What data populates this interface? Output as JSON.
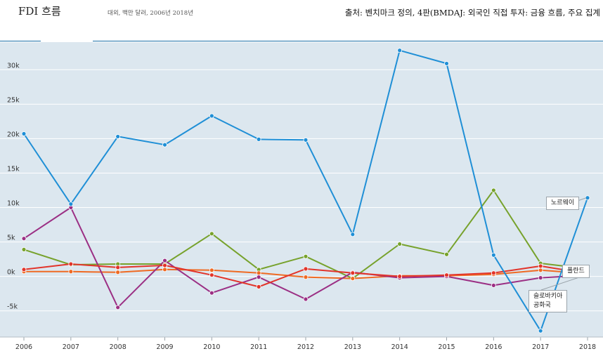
{
  "header": {
    "title": "FDI 흐름",
    "subtitle": "대외, 백만 달러, 2006년 2018년",
    "source": "출처: 벤치마크 정의, 4판(BMDAJ: 외국인 직접 투자: 금융 흐름, 주요 집계"
  },
  "colors": {
    "plot_background": "#dce7ef",
    "norway": "#1f8fd6",
    "hungary": "#77a22c",
    "poland": "#e2342a",
    "czech": "#ef6a23",
    "slovakia": "#9b2f84"
  },
  "chart_data": {
    "type": "line",
    "x": [
      2006,
      2007,
      2008,
      2009,
      2010,
      2011,
      2012,
      2013,
      2014,
      2015,
      2016,
      2017,
      2018
    ],
    "ylim": [
      -8800,
      34000
    ],
    "yticks": [
      -5000,
      0,
      5000,
      10000,
      15000,
      20000,
      25000,
      30000
    ],
    "ytick_labels": [
      "-5k",
      "0k",
      "5k",
      "10k",
      "15k",
      "20k",
      "25k",
      "30k"
    ],
    "grid": true,
    "series": [
      {
        "key": "hungary",
        "values": [
          3900,
          1700,
          1800,
          1800,
          6200,
          1000,
          2900,
          -300,
          4700,
          3200,
          12500,
          1900,
          1100
        ]
      },
      {
        "key": "czech",
        "values": [
          700,
          700,
          600,
          1000,
          900,
          500,
          -100,
          -300,
          100,
          100,
          300,
          900,
          400
        ]
      },
      {
        "key": "slovakia",
        "values": [
          5500,
          10000,
          -4500,
          2300,
          -2400,
          -100,
          -3300,
          600,
          -200,
          0,
          -1300,
          -200,
          200
        ]
      },
      {
        "key": "poland",
        "values": [
          1000,
          1800,
          1300,
          1600,
          200,
          -1500,
          1100,
          500,
          0,
          200,
          500,
          1500,
          400
        ]
      },
      {
        "key": "norway",
        "name": "노르웨이",
        "values": [
          20700,
          10500,
          20300,
          19100,
          23300,
          19900,
          19800,
          6100,
          32800,
          30900,
          3100,
          -7900,
          11400
        ]
      }
    ],
    "callouts": {
      "norway": "노르웨이",
      "poland": "폴란드",
      "slovakia_line1": "슬로바키아",
      "slovakia_line2": "공화국"
    }
  }
}
